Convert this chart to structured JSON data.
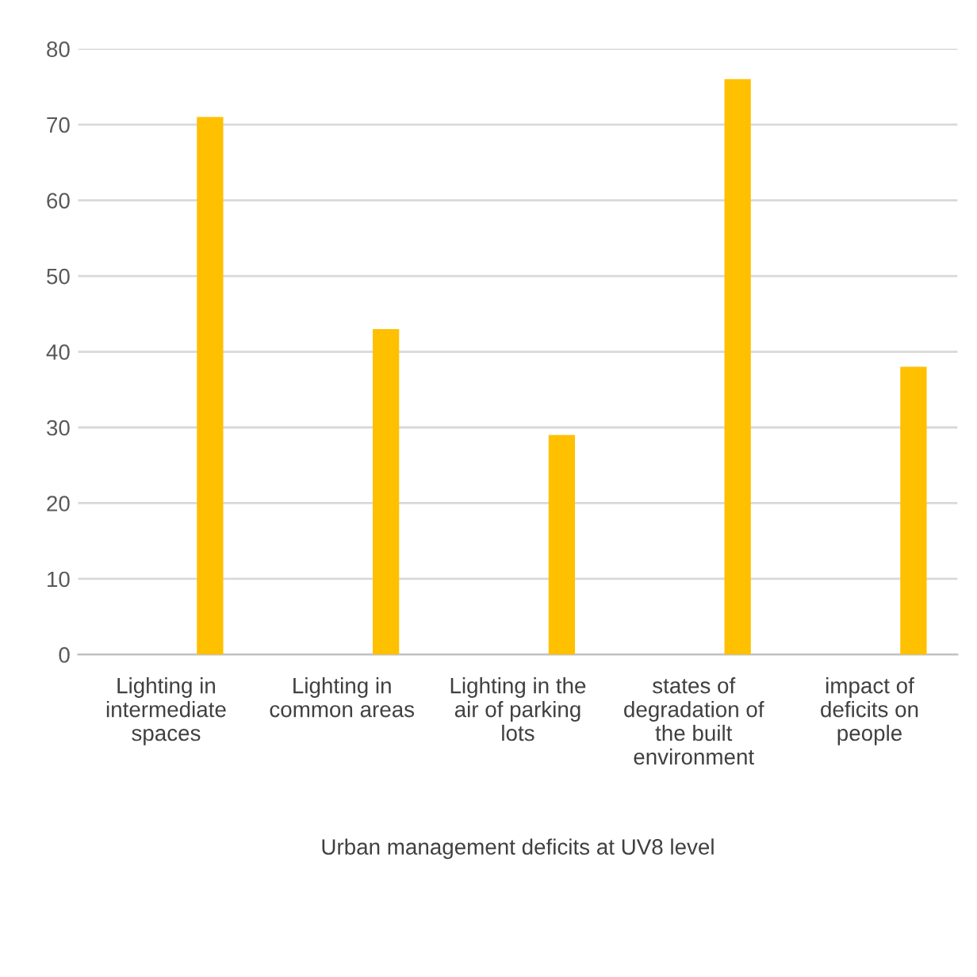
{
  "chart_data": {
    "type": "bar",
    "categories": [
      "Lighting in intermediate spaces",
      "Lighting in common areas",
      "Lighting in the air of parking lots",
      "states of degradation of the built environment",
      "impact of deficits on people"
    ],
    "values": [
      71,
      43,
      29,
      76,
      38
    ],
    "color": "#ffc000",
    "xlabel": "Urban management deficits at UV8 level",
    "ylim": [
      0,
      80
    ],
    "yticks": [
      0,
      10,
      20,
      30,
      40,
      50,
      60,
      70,
      80
    ],
    "grid": "y",
    "legend": false
  }
}
